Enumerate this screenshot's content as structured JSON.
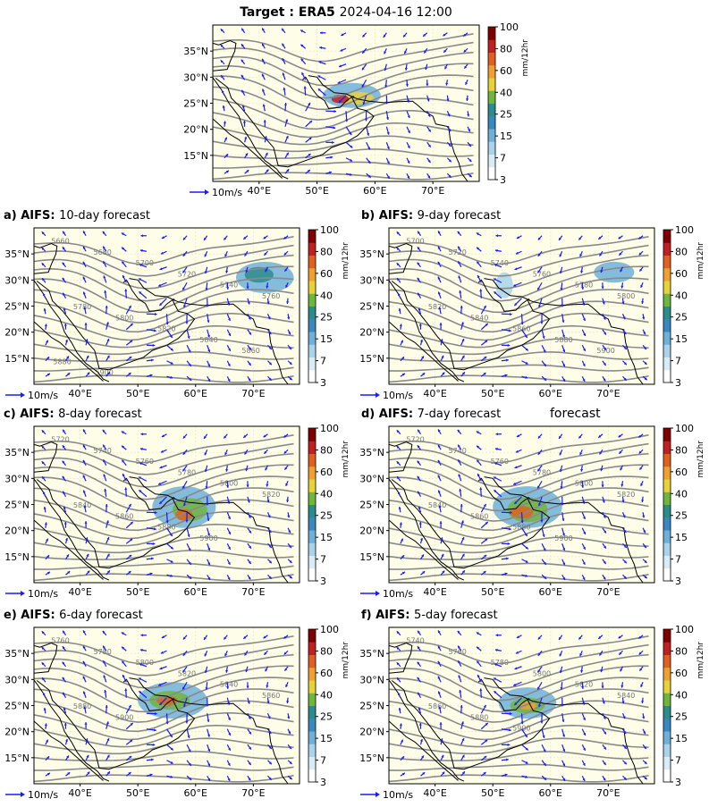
{
  "colors": {
    "background": "#fdfde8",
    "contour": "#8a8a8a",
    "coast": "#000000",
    "wind": "#1a1aff",
    "grid": "#e6e6bf"
  },
  "colorbar": {
    "label": "mm/12hr",
    "ticks": [
      "3",
      "7",
      "15",
      "25",
      "40",
      "60",
      "80",
      "100"
    ],
    "colors": [
      "#ffffff",
      "#d9ecf5",
      "#a9d3ea",
      "#6fb0d8",
      "#3a88c0",
      "#2b8c8c",
      "#6fb63c",
      "#e8d23a",
      "#f0a030",
      "#e06020",
      "#c02020",
      "#800000"
    ]
  },
  "wind_key": {
    "label": "10m/s"
  },
  "chart_data": [
    {
      "id": "target",
      "type": "map",
      "panel_letter": "",
      "title_prefix": "Target :",
      "title_model": "ERA5",
      "title_time": "2024-04-16 12:00",
      "x_ticks": [
        "40°E",
        "50°E",
        "60°E",
        "70°E"
      ],
      "y_ticks": [
        "35°N",
        "30°N",
        "25°N",
        "20°N",
        "15°N"
      ],
      "xlim": [
        32,
        78
      ],
      "ylim": [
        10,
        40
      ],
      "precip_blobs": [
        {
          "lon": 56,
          "lat": 26.5,
          "rx": 5,
          "ry": 2.4,
          "level": 3
        },
        {
          "lon": 57,
          "lat": 26,
          "rx": 2.8,
          "ry": 1.2,
          "level": 7
        },
        {
          "lon": 54,
          "lat": 25.8,
          "rx": 1.5,
          "ry": 0.8,
          "level": 10
        }
      ],
      "contour_labels": []
    },
    {
      "id": "a",
      "type": "map",
      "panel_letter": "a)",
      "title_model": "AIFS:",
      "title_lead": "10-day forecast",
      "x_ticks": [
        "40°E",
        "50°E",
        "60°E",
        "70°E"
      ],
      "y_ticks": [
        "35°N",
        "30°N",
        "25°N",
        "20°N",
        "15°N"
      ],
      "xlim": [
        32,
        78
      ],
      "ylim": [
        10,
        40
      ],
      "precip_blobs": [
        {
          "lon": 72,
          "lat": 30.5,
          "rx": 5,
          "ry": 3,
          "level": 3
        },
        {
          "lon": 71,
          "lat": 31,
          "rx": 2.5,
          "ry": 1.5,
          "level": 5
        }
      ],
      "contour_labels": [
        "5660",
        "5680",
        "5700",
        "5720",
        "5740",
        "5760",
        "5780",
        "5800",
        "5820",
        "5840",
        "5860",
        "5880",
        "5900"
      ]
    },
    {
      "id": "b",
      "type": "map",
      "panel_letter": "b)",
      "title_model": "AIFS:",
      "title_lead": "9-day forecast",
      "x_ticks": [
        "40°E",
        "50°E",
        "60°E",
        "70°E"
      ],
      "y_ticks": [
        "35°N",
        "30°N",
        "25°N",
        "20°N",
        "15°N"
      ],
      "xlim": [
        32,
        78
      ],
      "ylim": [
        10,
        40
      ],
      "precip_blobs": [
        {
          "lon": 71,
          "lat": 31.5,
          "rx": 3.5,
          "ry": 2,
          "level": 3
        },
        {
          "lon": 52,
          "lat": 29,
          "rx": 1.5,
          "ry": 2.5,
          "level": 2
        }
      ],
      "contour_labels": [
        "5700",
        "5720",
        "5740",
        "5760",
        "5780",
        "5800",
        "5820",
        "5840",
        "5860",
        "5880",
        "5900"
      ]
    },
    {
      "id": "c",
      "type": "map",
      "panel_letter": "c)",
      "title_model": "AIFS:",
      "title_lead": "8-day forecast",
      "x_ticks": [
        "40°E",
        "50°E",
        "60°E",
        "70°E"
      ],
      "y_ticks": [
        "35°N",
        "30°N",
        "25°N",
        "20°N",
        "15°N"
      ],
      "xlim": [
        32,
        78
      ],
      "ylim": [
        10,
        40
      ],
      "precip_blobs": [
        {
          "lon": 58,
          "lat": 24.5,
          "rx": 5.5,
          "ry": 4,
          "level": 3
        },
        {
          "lon": 59,
          "lat": 24,
          "rx": 3,
          "ry": 2.2,
          "level": 6
        },
        {
          "lon": 58,
          "lat": 23,
          "rx": 1.5,
          "ry": 1.1,
          "level": 9
        }
      ],
      "contour_labels": [
        "5720",
        "5740",
        "5760",
        "5780",
        "5800",
        "5820",
        "5840",
        "5860",
        "5880",
        "5900"
      ]
    },
    {
      "id": "d",
      "type": "map",
      "panel_letter": "d)",
      "title_model": "AIFS:",
      "title_lead": "7-day forecast",
      "title_extra": "forecast",
      "x_ticks": [
        "40°E",
        "50°E",
        "60°E",
        "70°E"
      ],
      "y_ticks": [
        "35°N",
        "30°N",
        "25°N",
        "20°N",
        "15°N"
      ],
      "xlim": [
        32,
        78
      ],
      "ylim": [
        10,
        40
      ],
      "precip_blobs": [
        {
          "lon": 56,
          "lat": 24.5,
          "rx": 6,
          "ry": 4,
          "level": 3
        },
        {
          "lon": 56,
          "lat": 24,
          "rx": 3.5,
          "ry": 2.4,
          "level": 6
        },
        {
          "lon": 55,
          "lat": 23.5,
          "rx": 2,
          "ry": 1.2,
          "level": 9
        }
      ],
      "contour_labels": [
        "5720",
        "5740",
        "5760",
        "5780",
        "5800",
        "5820",
        "5840",
        "5860",
        "5880",
        "5900"
      ]
    },
    {
      "id": "e",
      "type": "map",
      "panel_letter": "e)",
      "title_model": "AIFS:",
      "title_lead": "6-day forecast",
      "x_ticks": [
        "40°E",
        "50°E",
        "60°E",
        "70°E"
      ],
      "y_ticks": [
        "35°N",
        "30°N",
        "25°N",
        "20°N",
        "15°N"
      ],
      "xlim": [
        32,
        78
      ],
      "ylim": [
        10,
        40
      ],
      "precip_blobs": [
        {
          "lon": 56,
          "lat": 26,
          "rx": 6,
          "ry": 3.5,
          "level": 3
        },
        {
          "lon": 55.5,
          "lat": 26,
          "rx": 3.5,
          "ry": 1.8,
          "level": 6
        },
        {
          "lon": 55,
          "lat": 26,
          "rx": 1.8,
          "ry": 0.9,
          "level": 9
        }
      ],
      "contour_labels": [
        "5760",
        "5780",
        "5800",
        "5820",
        "5840",
        "5860",
        "5880",
        "5900"
      ]
    },
    {
      "id": "f",
      "type": "map",
      "panel_letter": "f)",
      "title_model": "AIFS:",
      "title_lead": "5-day forecast",
      "x_ticks": [
        "40°E",
        "50°E",
        "60°E",
        "70°E"
      ],
      "y_ticks": [
        "35°N",
        "30°N",
        "25°N",
        "20°N",
        "15°N"
      ],
      "xlim": [
        32,
        78
      ],
      "ylim": [
        10,
        40
      ],
      "precip_blobs": [
        {
          "lon": 56,
          "lat": 25.5,
          "rx": 5,
          "ry": 3,
          "level": 3
        },
        {
          "lon": 56,
          "lat": 25,
          "rx": 3,
          "ry": 1.5,
          "level": 6
        },
        {
          "lon": 56,
          "lat": 25,
          "rx": 1.5,
          "ry": 0.8,
          "level": 8
        }
      ],
      "contour_labels": [
        "5740",
        "5760",
        "5780",
        "5800",
        "5820",
        "5840",
        "5860",
        "5880",
        "5900"
      ]
    }
  ]
}
